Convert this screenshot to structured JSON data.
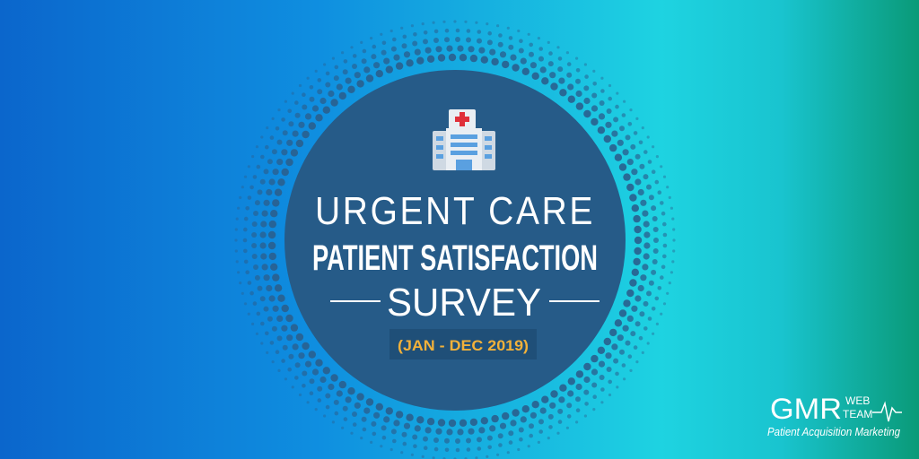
{
  "banner": {
    "line1": "URGENT CARE",
    "line2": "PATIENT SATISFACTION",
    "line3": "SURVEY",
    "date_range": "(JAN - DEC 2019)"
  },
  "logo": {
    "brand": "GMR",
    "web": "WEB",
    "team": "TEAM",
    "tagline": "Patient Acquisition Marketing"
  }
}
